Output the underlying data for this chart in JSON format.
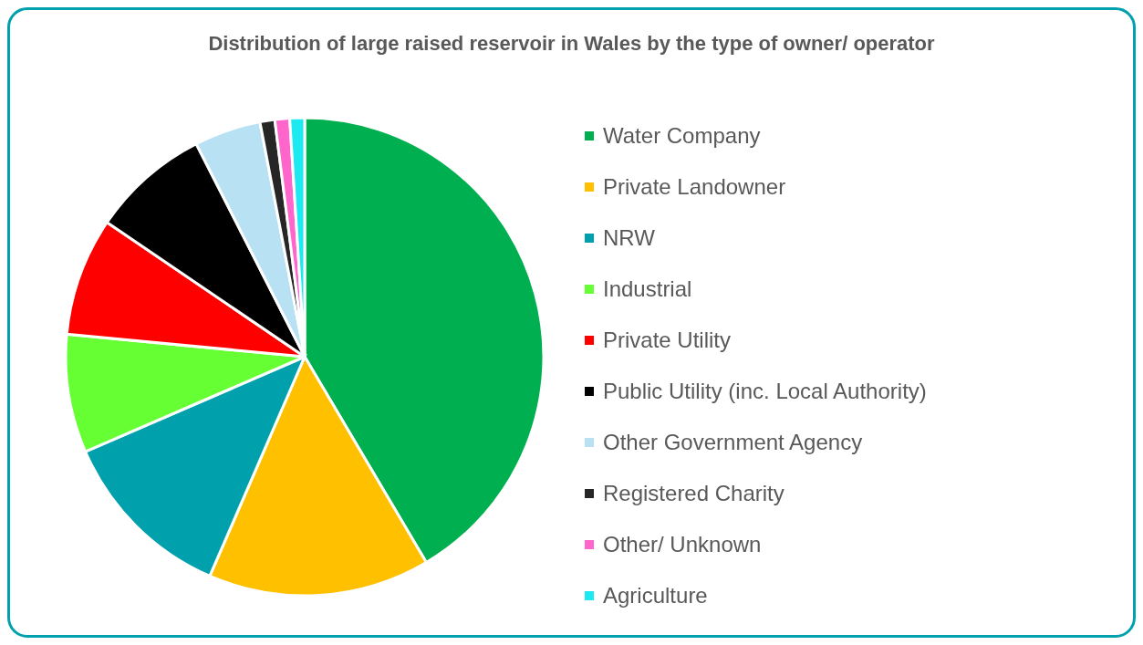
{
  "chart_data": {
    "type": "pie",
    "title": "Distribution of large raised reservoir in Wales by the type of owner/ operator",
    "categories": [
      "Water Company",
      "Private Landowner",
      "NRW",
      "Industrial",
      "Private Utility",
      "Public Utility (inc. Local Authority)",
      "Other Government Agency",
      "Registered Charity",
      "Other/ Unknown",
      "Agriculture"
    ],
    "values": [
      41.5,
      15,
      12,
      8,
      8,
      8,
      4.5,
      1,
      1,
      1
    ],
    "colors": [
      "#00b050",
      "#ffc000",
      "#00a0ad",
      "#66ff33",
      "#ff0000",
      "#000000",
      "#b8e2f4",
      "#262626",
      "#ff66cc",
      "#1de9f0"
    ],
    "legend": "right"
  }
}
